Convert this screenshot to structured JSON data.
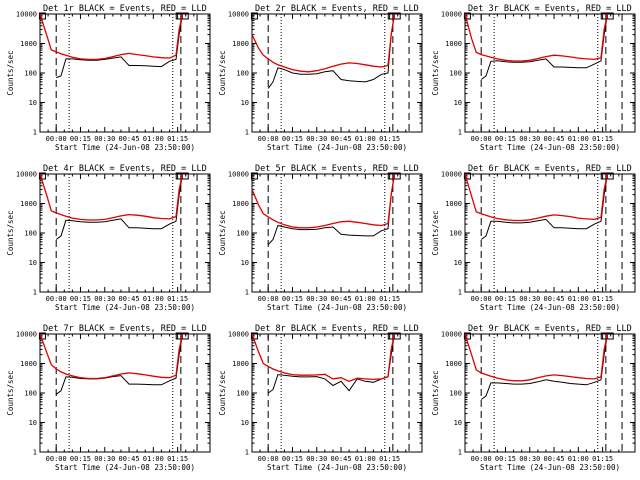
{
  "chart_data": [
    {
      "type": "line",
      "title": "Det 1r BLACK = Events, RED = LLD",
      "xlabel": "Start Time (24-Jun-08 23:50:00)",
      "ylabel": "Counts/sec",
      "yscale": "log",
      "ylim": [
        1,
        10000
      ],
      "xlim_minutes": [
        -10,
        95
      ],
      "x_tick_labels": [
        "00:00",
        "00:15",
        "00:30",
        "00:45",
        "01:00",
        "01:15"
      ],
      "y_tick_labels": [
        "1",
        "10",
        "100",
        "1000",
        "10000"
      ],
      "dashed_markers_minutes": [
        0,
        77,
        87
      ],
      "dotted_markers_minutes": [
        8,
        72
      ],
      "x_minutes": [
        -10,
        -6,
        -3,
        0,
        3,
        6,
        10,
        15,
        20,
        25,
        30,
        35,
        40,
        45,
        50,
        55,
        60,
        65,
        70,
        74,
        76,
        78
      ],
      "series": [
        {
          "name": "Events",
          "color": "#000000",
          "values": [
            null,
            null,
            null,
            70,
            80,
            300,
            300,
            280,
            270,
            270,
            290,
            320,
            350,
            180,
            180,
            175,
            170,
            165,
            250,
            290,
            2000,
            10000
          ]
        },
        {
          "name": "LLD",
          "color": "#e00000",
          "values": [
            10000,
            2000,
            600,
            520,
            450,
            400,
            340,
            300,
            290,
            290,
            310,
            360,
            420,
            460,
            420,
            390,
            350,
            330,
            320,
            400,
            3000,
            10000
          ]
        }
      ]
    },
    {
      "type": "line",
      "title": "Det 2r BLACK = Events, RED = LLD",
      "xlabel": "Start Time (24-Jun-08 23:50:00)",
      "ylabel": "Counts/sec",
      "yscale": "log",
      "ylim": [
        1,
        10000
      ],
      "xlim_minutes": [
        -10,
        95
      ],
      "x_tick_labels": [
        "00:00",
        "00:15",
        "00:30",
        "00:45",
        "01:00",
        "01:15"
      ],
      "y_tick_labels": [
        "1",
        "10",
        "100",
        "1000",
        "10000"
      ],
      "dashed_markers_minutes": [
        0,
        77,
        87
      ],
      "dotted_markers_minutes": [
        8,
        72
      ],
      "x_minutes": [
        -10,
        -6,
        -3,
        0,
        3,
        6,
        10,
        15,
        20,
        25,
        30,
        35,
        40,
        45,
        50,
        55,
        60,
        65,
        70,
        74,
        76,
        78
      ],
      "series": [
        {
          "name": "Events",
          "color": "#000000",
          "values": [
            null,
            null,
            null,
            30,
            50,
            150,
            130,
            100,
            90,
            90,
            95,
            110,
            120,
            60,
            55,
            52,
            50,
            60,
            90,
            100,
            2000,
            10000
          ]
        },
        {
          "name": "LLD",
          "color": "#e00000",
          "values": [
            2000,
            700,
            400,
            300,
            230,
            190,
            160,
            130,
            115,
            110,
            120,
            140,
            170,
            200,
            220,
            210,
            190,
            170,
            160,
            180,
            2000,
            10000
          ]
        }
      ]
    },
    {
      "type": "line",
      "title": "Det 3r BLACK = Events, RED = LLD",
      "xlabel": "Start Time (24-Jun-08 23:50:00)",
      "ylabel": "Counts/sec",
      "yscale": "log",
      "ylim": [
        1,
        10000
      ],
      "xlim_minutes": [
        -10,
        95
      ],
      "x_tick_labels": [
        "00:00",
        "00:15",
        "00:30",
        "00:45",
        "01:00",
        "01:15"
      ],
      "y_tick_labels": [
        "1",
        "10",
        "100",
        "1000",
        "10000"
      ],
      "dashed_markers_minutes": [
        0,
        77,
        87
      ],
      "dotted_markers_minutes": [
        8,
        72
      ],
      "x_minutes": [
        -10,
        -6,
        -3,
        0,
        3,
        6,
        10,
        15,
        20,
        25,
        30,
        35,
        40,
        45,
        50,
        55,
        60,
        65,
        70,
        74,
        76,
        78
      ],
      "series": [
        {
          "name": "Events",
          "color": "#000000",
          "values": [
            null,
            null,
            null,
            60,
            80,
            250,
            260,
            240,
            230,
            230,
            240,
            270,
            300,
            160,
            160,
            155,
            150,
            150,
            200,
            260,
            2000,
            10000
          ]
        },
        {
          "name": "LLD",
          "color": "#e00000",
          "values": [
            10000,
            1500,
            500,
            420,
            380,
            340,
            300,
            270,
            255,
            255,
            270,
            310,
            360,
            400,
            380,
            350,
            320,
            300,
            290,
            330,
            3000,
            10000
          ]
        }
      ]
    },
    {
      "type": "line",
      "title": "Det 4r BLACK = Events, RED = LLD",
      "xlabel": "Start Time (24-Jun-08 23:50:00)",
      "ylabel": "Counts/sec",
      "yscale": "log",
      "ylim": [
        1,
        10000
      ],
      "xlim_minutes": [
        -10,
        95
      ],
      "x_tick_labels": [
        "00:00",
        "00:15",
        "00:30",
        "00:45",
        "01:00",
        "01:15"
      ],
      "y_tick_labels": [
        "1",
        "10",
        "100",
        "1000",
        "10000"
      ],
      "dashed_markers_minutes": [
        0,
        77,
        87
      ],
      "dotted_markers_minutes": [
        8,
        72
      ],
      "x_minutes": [
        -10,
        -6,
        -3,
        0,
        3,
        6,
        10,
        15,
        20,
        25,
        30,
        35,
        40,
        45,
        50,
        55,
        60,
        65,
        70,
        74,
        76,
        78
      ],
      "series": [
        {
          "name": "Events",
          "color": "#000000",
          "values": [
            null,
            null,
            null,
            60,
            80,
            270,
            260,
            240,
            230,
            230,
            240,
            270,
            300,
            150,
            150,
            145,
            140,
            140,
            200,
            250,
            2000,
            10000
          ]
        },
        {
          "name": "LLD",
          "color": "#e00000",
          "values": [
            10000,
            2000,
            560,
            480,
            420,
            370,
            320,
            290,
            275,
            275,
            290,
            330,
            380,
            420,
            400,
            370,
            330,
            310,
            300,
            360,
            3000,
            10000
          ]
        }
      ]
    },
    {
      "type": "line",
      "title": "Det 5r BLACK = Events, RED = LLD",
      "xlabel": "Start Time (24-Jun-08 23:50:00)",
      "ylabel": "Counts/sec",
      "yscale": "log",
      "ylim": [
        1,
        10000
      ],
      "xlim_minutes": [
        -10,
        95
      ],
      "x_tick_labels": [
        "00:00",
        "00:15",
        "00:30",
        "00:45",
        "01:00",
        "01:15"
      ],
      "y_tick_labels": [
        "1",
        "10",
        "100",
        "1000",
        "10000"
      ],
      "dashed_markers_minutes": [
        0,
        77,
        87
      ],
      "dotted_markers_minutes": [
        8,
        72
      ],
      "x_minutes": [
        -10,
        -6,
        -3,
        0,
        3,
        6,
        10,
        15,
        20,
        25,
        30,
        35,
        40,
        45,
        50,
        55,
        60,
        65,
        70,
        74,
        76,
        78
      ],
      "series": [
        {
          "name": "Events",
          "color": "#000000",
          "values": [
            null,
            null,
            null,
            40,
            60,
            180,
            160,
            140,
            130,
            130,
            135,
            150,
            160,
            90,
            85,
            82,
            80,
            80,
            120,
            140,
            2000,
            10000
          ]
        },
        {
          "name": "LLD",
          "color": "#e00000",
          "values": [
            3000,
            900,
            450,
            350,
            280,
            230,
            190,
            160,
            150,
            150,
            160,
            180,
            210,
            240,
            250,
            230,
            210,
            190,
            180,
            210,
            2000,
            10000
          ]
        }
      ]
    },
    {
      "type": "line",
      "title": "Det 6r BLACK = Events, RED = LLD",
      "xlabel": "Start Time (24-Jun-08 23:50:00)",
      "ylabel": "Counts/sec",
      "yscale": "log",
      "ylim": [
        1,
        10000
      ],
      "xlim_minutes": [
        -10,
        95
      ],
      "x_tick_labels": [
        "00:00",
        "00:15",
        "00:30",
        "00:45",
        "01:00",
        "01:15"
      ],
      "y_tick_labels": [
        "1",
        "10",
        "100",
        "1000",
        "10000"
      ],
      "dashed_markers_minutes": [
        0,
        77,
        87
      ],
      "dotted_markers_minutes": [
        8,
        72
      ],
      "x_minutes": [
        -10,
        -6,
        -3,
        0,
        3,
        6,
        10,
        15,
        20,
        25,
        30,
        35,
        40,
        45,
        50,
        55,
        60,
        65,
        70,
        74,
        76,
        78
      ],
      "series": [
        {
          "name": "Events",
          "color": "#000000",
          "values": [
            null,
            null,
            null,
            60,
            80,
            250,
            250,
            230,
            220,
            220,
            230,
            260,
            290,
            150,
            150,
            145,
            140,
            140,
            200,
            250,
            2000,
            10000
          ]
        },
        {
          "name": "LLD",
          "color": "#e00000",
          "values": [
            10000,
            1800,
            520,
            450,
            400,
            350,
            310,
            280,
            265,
            265,
            280,
            320,
            370,
            410,
            390,
            360,
            320,
            300,
            290,
            340,
            3000,
            10000
          ]
        }
      ]
    },
    {
      "type": "line",
      "title": "Det 7r BLACK = Events, RED = LLD",
      "xlabel": "Start Time (24-Jun-08 23:50:00)",
      "ylabel": "Counts/sec",
      "yscale": "log",
      "ylim": [
        1,
        10000
      ],
      "xlim_minutes": [
        -10,
        95
      ],
      "x_tick_labels": [
        "00:00",
        "00:15",
        "00:30",
        "00:45",
        "01:00",
        "01:15"
      ],
      "y_tick_labels": [
        "1",
        "10",
        "100",
        "1000",
        "10000"
      ],
      "dashed_markers_minutes": [
        0,
        77,
        87
      ],
      "dotted_markers_minutes": [
        8,
        72
      ],
      "x_minutes": [
        -10,
        -6,
        -3,
        0,
        3,
        6,
        10,
        15,
        20,
        25,
        30,
        35,
        40,
        45,
        50,
        55,
        60,
        65,
        70,
        74,
        76,
        78
      ],
      "series": [
        {
          "name": "Events",
          "color": "#000000",
          "values": [
            null,
            null,
            null,
            90,
            120,
            350,
            340,
            310,
            300,
            300,
            320,
            360,
            390,
            200,
            200,
            195,
            190,
            190,
            260,
            320,
            2000,
            10000
          ]
        },
        {
          "name": "LLD",
          "color": "#e00000",
          "values": [
            10000,
            2500,
            900,
            650,
            520,
            440,
            380,
            330,
            310,
            310,
            330,
            380,
            440,
            480,
            450,
            410,
            370,
            340,
            330,
            400,
            3000,
            10000
          ]
        }
      ]
    },
    {
      "type": "line",
      "title": "Det 8r BLACK = Events, RED = LLD",
      "xlabel": "Start Time (24-Jun-08 23:50:00)",
      "ylabel": "Counts/sec",
      "yscale": "log",
      "ylim": [
        1,
        10000
      ],
      "xlim_minutes": [
        -10,
        95
      ],
      "x_tick_labels": [
        "00:00",
        "00:15",
        "00:30",
        "00:45",
        "01:00",
        "01:15"
      ],
      "y_tick_labels": [
        "1",
        "10",
        "100",
        "1000",
        "10000"
      ],
      "dashed_markers_minutes": [
        0,
        77,
        87
      ],
      "dotted_markers_minutes": [
        8,
        72
      ],
      "x_minutes": [
        -10,
        -6,
        -3,
        0,
        3,
        6,
        10,
        15,
        20,
        25,
        30,
        35,
        40,
        45,
        50,
        55,
        60,
        65,
        70,
        74,
        76,
        78
      ],
      "series": [
        {
          "name": "Events",
          "color": "#000000",
          "values": [
            null,
            null,
            null,
            100,
            130,
            420,
            400,
            370,
            350,
            350,
            360,
            300,
            180,
            250,
            120,
            300,
            250,
            230,
            300,
            350,
            2000,
            10000
          ]
        },
        {
          "name": "LLD",
          "color": "#e00000",
          "values": [
            10000,
            2500,
            1000,
            800,
            650,
            560,
            480,
            420,
            400,
            400,
            410,
            430,
            300,
            330,
            250,
            320,
            300,
            290,
            300,
            360,
            3000,
            10000
          ]
        }
      ]
    },
    {
      "type": "line",
      "title": "Det 9r BLACK = Events, RED = LLD",
      "xlabel": "Start Time (24-Jun-08 23:50:00)",
      "ylabel": "Counts/sec",
      "yscale": "log",
      "ylim": [
        1,
        10000
      ],
      "xlim_minutes": [
        -10,
        95
      ],
      "x_tick_labels": [
        "00:00",
        "00:15",
        "00:30",
        "00:45",
        "01:00",
        "01:15"
      ],
      "y_tick_labels": [
        "1",
        "10",
        "100",
        "1000",
        "10000"
      ],
      "dashed_markers_minutes": [
        0,
        77,
        87
      ],
      "dotted_markers_minutes": [
        8,
        72
      ],
      "x_minutes": [
        -10,
        -6,
        -3,
        0,
        3,
        6,
        10,
        15,
        20,
        25,
        30,
        35,
        40,
        45,
        50,
        55,
        60,
        65,
        70,
        74,
        76,
        78
      ],
      "series": [
        {
          "name": "Events",
          "color": "#000000",
          "values": [
            null,
            null,
            null,
            60,
            80,
            220,
            220,
            210,
            200,
            200,
            210,
            240,
            280,
            250,
            230,
            210,
            200,
            190,
            230,
            280,
            2000,
            10000
          ]
        },
        {
          "name": "LLD",
          "color": "#e00000",
          "values": [
            10000,
            2000,
            600,
            480,
            420,
            370,
            320,
            280,
            260,
            260,
            280,
            330,
            380,
            410,
            390,
            360,
            330,
            310,
            300,
            350,
            3000,
            10000
          ]
        }
      ]
    }
  ]
}
